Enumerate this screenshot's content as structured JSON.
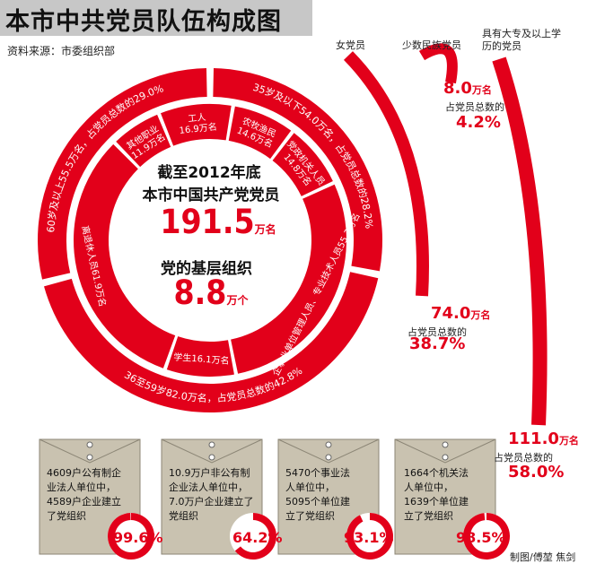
{
  "title": "本市中共党员队伍构成图",
  "source": "资料来源：市委组织部",
  "center": {
    "line1": "截至2012年底",
    "line2": "本市中国共产党党员",
    "members_value": "191.5",
    "members_unit": "万名",
    "line3": "党的基层组织",
    "orgs_value": "8.8",
    "orgs_unit": "万个"
  },
  "colors": {
    "accent": "#e2001a",
    "envelope": "#c9c2b0",
    "title_bg": "#c7c7c7"
  },
  "chart_data": [
    {
      "type": "pie",
      "title": "",
      "ring": "outer",
      "segments": [
        {
          "label": "35岁及以下54.0万名，占党员总数的28.2%",
          "value": 54.0,
          "percent": 28.2
        },
        {
          "label": "36至59岁82.0万名，占党员总数的42.8%",
          "value": 82.0,
          "percent": 42.8
        },
        {
          "label": "60岁及以上55.5万名，占党员总数的29.0%",
          "value": 55.5,
          "percent": 29.0
        }
      ]
    },
    {
      "type": "pie",
      "title": "",
      "ring": "inner",
      "segments": [
        {
          "label": "工人",
          "value_text": "16.9万名",
          "value": 16.9
        },
        {
          "label": "农牧渔民",
          "value_text": "14.6万名",
          "value": 14.6
        },
        {
          "label": "党政机关人员",
          "value_text": "14.8万名",
          "value": 14.8
        },
        {
          "label": "企事业单位管理人员、专业技术人员55.3万名",
          "value": 55.3
        },
        {
          "label": "学生16.1万名",
          "value": 16.1
        },
        {
          "label": "离退休人员61.9万名",
          "value": 61.9
        },
        {
          "label": "其他职业",
          "value_text": "11.9万名",
          "value": 11.9
        }
      ]
    },
    {
      "type": "bar",
      "title": "",
      "categories": [
        "女党员",
        "少数民族党员",
        "具有大专及以上学历的党员"
      ],
      "values": [
        74.0,
        8.0,
        111.0
      ],
      "value_labels": [
        "74.0",
        "8.0",
        "111.0"
      ],
      "unit": "万名",
      "share_label": "占党员总数的",
      "percents": [
        "38.7%",
        "4.2%",
        "58.0%"
      ]
    }
  ],
  "envelopes": [
    {
      "text": "4609户公有制企业法人单位中，4589户企业建立了党组织",
      "percent_label": "99.6%",
      "percent": 99.6
    },
    {
      "text": "10.9万户非公有制企业法人单位中，7.0万户企业建立了党组织",
      "percent_label": "64.2%",
      "percent": 64.2
    },
    {
      "text": "5470个事业法人单位中，5095个单位建立了党组织",
      "percent_label": "93.1%",
      "percent": 93.1
    },
    {
      "text": "1664个机关法人单位中，1639个单位建立了党组织",
      "percent_label": "98.5%",
      "percent": 98.5
    }
  ],
  "credit": "制图/傅堃 焦剑"
}
